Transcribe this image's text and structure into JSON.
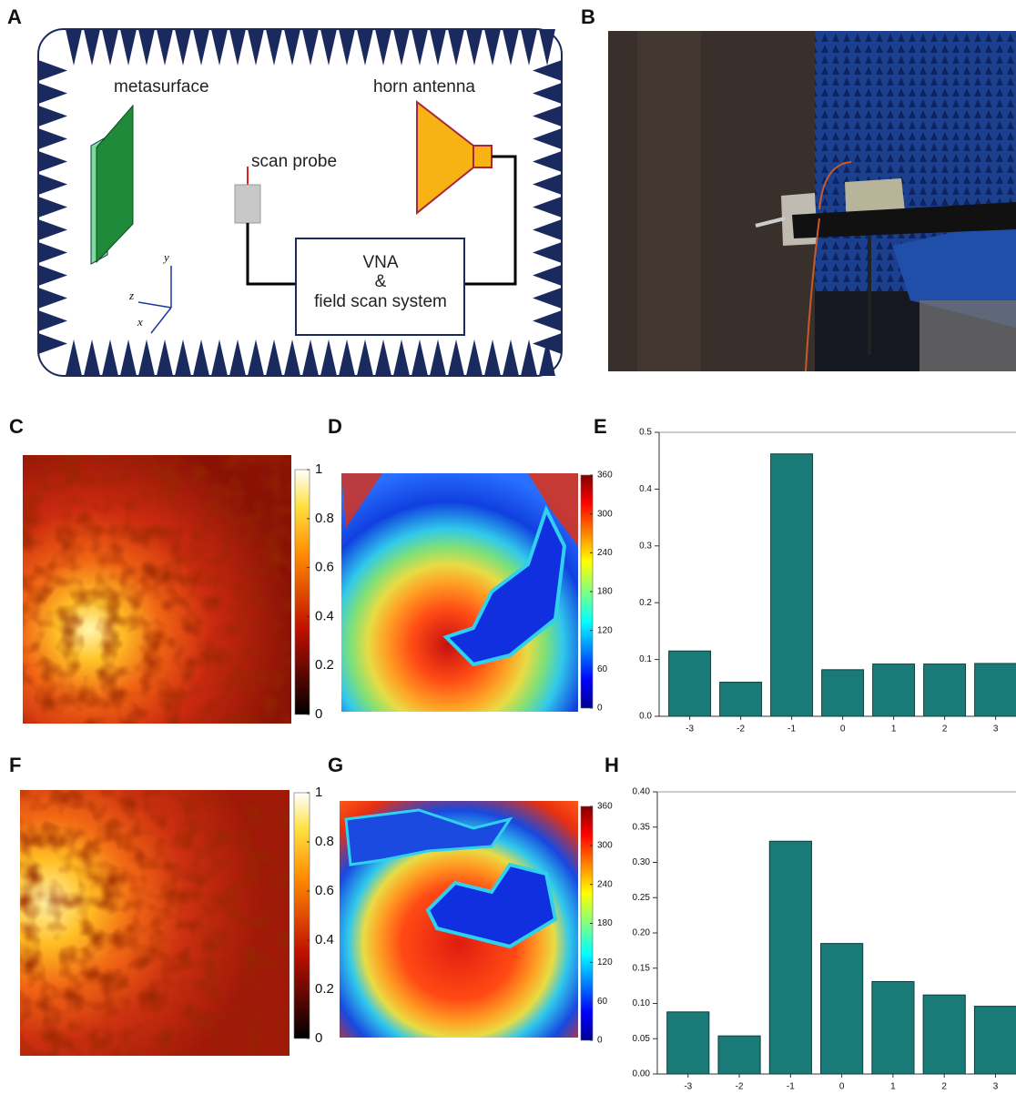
{
  "panel_labels": [
    "A",
    "B",
    "C",
    "D",
    "E",
    "F",
    "G",
    "H"
  ],
  "diagram": {
    "metasurface": "metasurface",
    "horn_antenna": "horn antenna",
    "scan_probe": "scan probe",
    "vna": [
      "VNA",
      "&",
      "field scan system"
    ],
    "axes": [
      "y",
      "z",
      "x"
    ]
  },
  "colorbars": [
    {
      "ylim": [
        0,
        1
      ],
      "yticks": [
        0,
        0.2,
        0.4,
        0.6,
        0.8,
        1
      ]
    },
    {
      "ylim": [
        0,
        360
      ],
      "yticks": [
        0,
        60,
        120,
        180,
        240,
        300,
        360
      ]
    },
    {
      "ylim": [
        0,
        1
      ],
      "yticks": [
        0,
        0.2,
        0.4,
        0.6,
        0.8,
        1
      ]
    },
    {
      "ylim": [
        0,
        360
      ],
      "yticks": [
        0,
        60,
        120,
        180,
        240,
        300,
        360
      ]
    }
  ],
  "chart_data": [
    {
      "type": "bar",
      "categories": [
        "-3",
        "-2",
        "-1",
        "0",
        "1",
        "2",
        "3"
      ],
      "values": [
        0.115,
        0.06,
        0.462,
        0.082,
        0.092,
        0.092,
        0.093
      ],
      "color": "#197a78",
      "ylim": [
        0,
        0.5
      ],
      "yticks": [
        {
          "value": 0,
          "label": "0.0"
        },
        0.1,
        0.2,
        0.3,
        0.4,
        0.5
      ],
      "grid": false
    },
    {
      "type": "bar",
      "categories": [
        "-3",
        "-2",
        "-1",
        "0",
        "1",
        "2",
        "3"
      ],
      "values": [
        0.088,
        0.054,
        0.33,
        0.185,
        0.131,
        0.112,
        0.096
      ],
      "color": "#197a78",
      "ylim": [
        0,
        0.4
      ],
      "yticks": [
        {
          "value": 0,
          "label": "0.00"
        },
        0.05,
        {
          "value": 0.1,
          "label": "0.10"
        },
        0.15,
        {
          "value": 0.2,
          "label": "0.20"
        },
        0.25,
        {
          "value": 0.3,
          "label": "0.30"
        },
        0.35,
        {
          "value": 0.4,
          "label": "0.40"
        }
      ],
      "grid": false
    }
  ]
}
